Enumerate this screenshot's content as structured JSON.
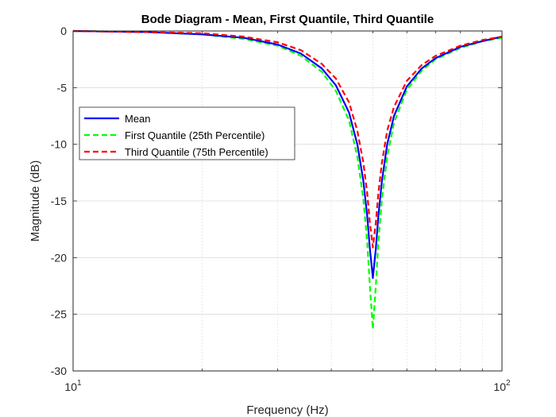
{
  "chart_data": {
    "type": "line",
    "title": "Bode Diagram - Mean, First Quantile, Third Quantile",
    "xlabel": "Frequency (Hz)",
    "ylabel": "Magnitude (dB)",
    "xscale": "log",
    "xlim": [
      10,
      100
    ],
    "ylim": [
      -30,
      0
    ],
    "yticks": [
      0,
      -5,
      -10,
      -15,
      -20,
      -25,
      -30
    ],
    "ytick_labels": [
      "0",
      "-5",
      "-10",
      "-15",
      "-20",
      "-25",
      "-30"
    ],
    "xticks": [
      10,
      100
    ],
    "xtick_labels": [
      {
        "base": "10",
        "exp": "1"
      },
      {
        "base": "10",
        "exp": "2"
      }
    ],
    "grid": true,
    "minor_grid": true,
    "legend_position": "upper-left",
    "series": [
      {
        "name": "Mean",
        "color": "#0000ff",
        "style": "solid",
        "x": [
          10,
          15,
          20,
          25,
          30,
          34,
          38,
          41,
          44,
          46,
          47.5,
          48.5,
          49.2,
          50,
          50.8,
          51.5,
          52.5,
          54,
          56,
          60,
          65,
          70,
          80,
          90,
          100
        ],
        "y": [
          0,
          -0.1,
          -0.3,
          -0.6,
          -1.2,
          -2.0,
          -3.3,
          -4.8,
          -7.2,
          -10.0,
          -13.2,
          -16.3,
          -19.2,
          -21.8,
          -19.2,
          -16.3,
          -13.2,
          -10.0,
          -7.5,
          -4.9,
          -3.3,
          -2.4,
          -1.4,
          -0.9,
          -0.5
        ]
      },
      {
        "name": "First Quantile (25th Percentile)",
        "color": "#00ff00",
        "style": "dashed",
        "x": [
          10,
          15,
          20,
          25,
          30,
          34,
          38,
          41,
          44,
          46,
          47.5,
          48.5,
          49.2,
          50,
          50.8,
          51.5,
          52.5,
          54,
          56,
          60,
          65,
          70,
          80,
          90,
          100
        ],
        "y": [
          0,
          -0.1,
          -0.3,
          -0.7,
          -1.3,
          -2.2,
          -3.6,
          -5.3,
          -7.9,
          -11.1,
          -14.8,
          -18.6,
          -22.5,
          -26.3,
          -22.5,
          -18.6,
          -14.8,
          -11.1,
          -8.1,
          -5.2,
          -3.5,
          -2.5,
          -1.5,
          -0.9,
          -0.6
        ]
      },
      {
        "name": "Third Quantile (75th Percentile)",
        "color": "#ff0000",
        "style": "dashed",
        "x": [
          10,
          15,
          20,
          25,
          30,
          34,
          38,
          41,
          44,
          46,
          47.5,
          48.5,
          49.2,
          50,
          50.8,
          51.5,
          52.5,
          54,
          56,
          60,
          65,
          70,
          80,
          90,
          100
        ],
        "y": [
          0,
          -0.1,
          -0.2,
          -0.5,
          -1.0,
          -1.7,
          -2.9,
          -4.2,
          -6.3,
          -8.8,
          -11.6,
          -14.3,
          -16.9,
          -19.1,
          -16.9,
          -14.3,
          -11.6,
          -8.8,
          -6.7,
          -4.4,
          -3.0,
          -2.2,
          -1.3,
          -0.8,
          -0.5
        ]
      }
    ]
  }
}
